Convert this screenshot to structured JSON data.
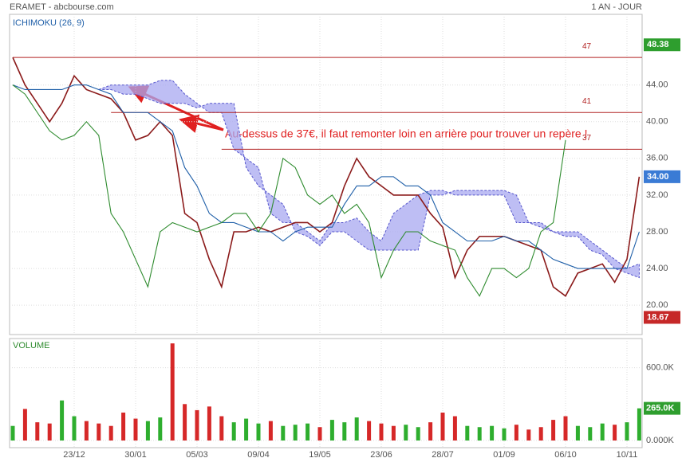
{
  "header": {
    "title": "ERAMET - abcbourse.com",
    "period": "1 AN - JOUR"
  },
  "chart_data": [
    {
      "type": "line",
      "legend": "ICHIMOKU (26, 9)",
      "categories": [
        null,
        null,
        null,
        null,
        null,
        "23/12",
        null,
        null,
        null,
        null,
        "30/01",
        null,
        null,
        null,
        null,
        "05/03",
        null,
        null,
        null,
        null,
        "09/04",
        null,
        null,
        null,
        null,
        "19/05",
        null,
        null,
        null,
        null,
        "23/06",
        null,
        null,
        null,
        null,
        "28/07",
        null,
        null,
        null,
        null,
        "01/09",
        null,
        null,
        null,
        null,
        "06/10",
        null,
        null,
        null,
        null,
        "10/11",
        null
      ],
      "series": [
        {
          "color": "#8b1a1a",
          "values": [
            47,
            44,
            42,
            40,
            42,
            45,
            43.5,
            43,
            42.5,
            41,
            38,
            38.5,
            40,
            38.5,
            30,
            29,
            25,
            22,
            28,
            28,
            28.5,
            28,
            28.5,
            29,
            29,
            28,
            29,
            33,
            36,
            34,
            33,
            32,
            32,
            32,
            30,
            28.5,
            23,
            26,
            27.5,
            27.5,
            27.5,
            27,
            26.5,
            26,
            22,
            21,
            23.5,
            24,
            24.5,
            22.5,
            25,
            34
          ]
        },
        {
          "color": "#1f5fa8",
          "values": [
            44,
            43.5,
            43.5,
            43.5,
            43.5,
            44,
            44,
            43.5,
            43,
            41,
            41,
            41,
            40,
            39,
            35,
            33,
            30,
            29,
            29,
            28.5,
            28,
            28,
            27,
            28,
            28.5,
            28.5,
            28.5,
            31,
            33,
            33,
            34,
            34,
            33,
            33,
            32,
            29,
            28,
            27,
            27,
            27,
            27.5,
            27,
            27,
            26,
            25,
            24.5,
            24,
            24,
            24,
            24,
            24,
            28
          ]
        },
        {
          "color": "#2e8b2e",
          "values": [
            44,
            43,
            41,
            39,
            38,
            38.5,
            40,
            38.5,
            30,
            28,
            25,
            22,
            28,
            29,
            28.5,
            28,
            28.5,
            29,
            30,
            30,
            28,
            30,
            36,
            35,
            32,
            31,
            32,
            30,
            31,
            29,
            23,
            26,
            28,
            28,
            27,
            26.5,
            26,
            23,
            21,
            24,
            24,
            23,
            24,
            28,
            29,
            38,
            null,
            null,
            null,
            null,
            null,
            null
          ]
        }
      ],
      "cloud": {
        "color": "#a8a8f0",
        "a": [
          null,
          null,
          null,
          null,
          null,
          null,
          null,
          43.5,
          44,
          44,
          44,
          44,
          44.5,
          44.5,
          43,
          42,
          41,
          41,
          37,
          36,
          35,
          30,
          29,
          29,
          28,
          27,
          29,
          29,
          29.5,
          28,
          27,
          30,
          31,
          32,
          32.5,
          32.5,
          32,
          32,
          32,
          32,
          32,
          29,
          29,
          28.5,
          28,
          28,
          28,
          27,
          26,
          25,
          24,
          24.5
        ],
        "b": [
          null,
          null,
          null,
          null,
          null,
          null,
          null,
          43.5,
          43.5,
          43,
          43,
          42.5,
          42,
          42,
          42,
          41.5,
          42,
          42,
          42,
          35,
          33,
          32,
          31,
          28,
          27.5,
          26.5,
          28,
          28,
          27,
          26,
          26,
          26,
          26,
          26,
          32,
          32,
          32.5,
          32.5,
          32.5,
          32.5,
          32.5,
          32,
          29,
          29,
          28,
          27.5,
          27.5,
          26,
          25.5,
          24,
          23.5,
          23
        ]
      },
      "levels": [
        47,
        41,
        37
      ],
      "level_color": "#b22222",
      "markers": [
        {
          "value": 48.38,
          "color": "#2e9e2e"
        },
        {
          "value": 34,
          "label": "34.00",
          "color": "#3a7bd5"
        },
        {
          "value": 18.67,
          "color": "#c62828"
        }
      ],
      "annotation": "Au-dessus de 37€, il faut remonter loin en arrière pour trouver un repère !",
      "ylim": [
        16.8,
        51.7
      ],
      "yticks": [
        {
          "value": 20,
          "label": "20.00"
        },
        {
          "value": 24,
          "label": "24.00"
        },
        {
          "value": 28,
          "label": "28.00"
        },
        {
          "value": 32,
          "label": "32.00"
        },
        {
          "value": 36,
          "label": "36.00"
        },
        {
          "value": 40,
          "label": "40.00"
        },
        {
          "value": 44,
          "label": "44.00"
        }
      ],
      "grid": true
    },
    {
      "type": "bar",
      "legend": "VOLUME",
      "up_color": "#2eae2e",
      "down_color": "#d62828",
      "values": [
        120000,
        260000,
        150000,
        140000,
        330000,
        200000,
        160000,
        140000,
        120000,
        230000,
        180000,
        160000,
        190000,
        800000,
        300000,
        250000,
        280000,
        200000,
        150000,
        180000,
        140000,
        160000,
        120000,
        130000,
        140000,
        110000,
        170000,
        150000,
        190000,
        160000,
        140000,
        120000,
        130000,
        110000,
        150000,
        230000,
        200000,
        120000,
        110000,
        120000,
        100000,
        130000,
        90000,
        110000,
        170000,
        200000,
        120000,
        110000,
        140000,
        130000,
        150000,
        265000
      ],
      "last_label": {
        "value": 265000,
        "label": "265.0K",
        "color": "#2e9e2e"
      },
      "ylim": [
        0,
        840000
      ],
      "yticks": [
        {
          "value": 0,
          "label": "0.000K"
        },
        {
          "value": 600000,
          "label": "600.0K"
        }
      ],
      "grid": true
    }
  ]
}
